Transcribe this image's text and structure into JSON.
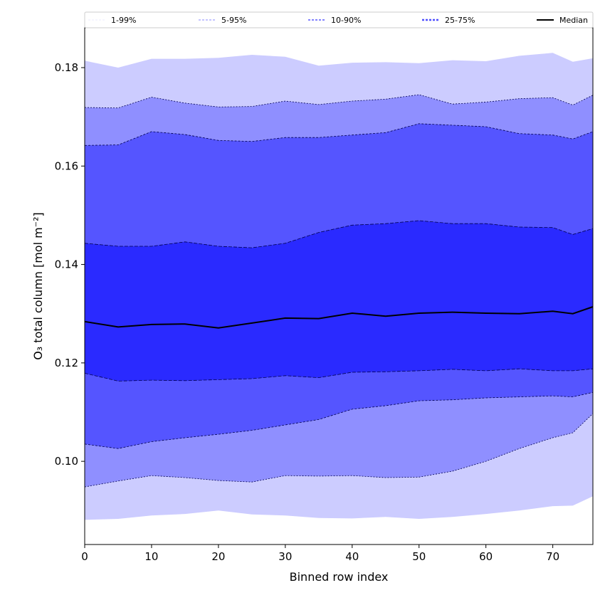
{
  "chart_data": {
    "type": "area",
    "title": "",
    "xlabel": "Binned row index",
    "ylabel": "O₃ total column [mol m⁻²]",
    "xlim": [
      0,
      76
    ],
    "ylim": [
      0.0831,
      0.1881
    ],
    "xticks": [
      "0",
      "10",
      "20",
      "30",
      "40",
      "50",
      "60",
      "70"
    ],
    "yticks": [
      "0.10",
      "0.12",
      "0.14",
      "0.16",
      "0.18"
    ],
    "legend_position": "top",
    "x": [
      0,
      5,
      10,
      15,
      20,
      25,
      30,
      35,
      40,
      45,
      50,
      55,
      60,
      65,
      70,
      73,
      76
    ],
    "bands": [
      {
        "name": "1-99%",
        "color": "#ccccff",
        "lower": [
          0.0881,
          0.0883,
          0.089,
          0.0893,
          0.09,
          0.0892,
          0.089,
          0.0885,
          0.0884,
          0.0887,
          0.0883,
          0.0887,
          0.0893,
          0.09,
          0.0909,
          0.091,
          0.0929
        ],
        "upper": [
          0.1814,
          0.18,
          0.1818,
          0.1818,
          0.182,
          0.1826,
          0.1822,
          0.1804,
          0.181,
          0.1811,
          0.1809,
          0.1815,
          0.1813,
          0.1824,
          0.183,
          0.1812,
          0.1819
        ]
      },
      {
        "name": "5-95%",
        "color": "#8f8fff",
        "lower": [
          0.0948,
          0.096,
          0.0971,
          0.0967,
          0.0961,
          0.0958,
          0.0971,
          0.097,
          0.0971,
          0.0967,
          0.0968,
          0.098,
          0.1,
          0.1026,
          0.1048,
          0.1058,
          0.1097
        ],
        "upper": [
          0.1719,
          0.1718,
          0.174,
          0.1728,
          0.172,
          0.1721,
          0.1732,
          0.1725,
          0.1732,
          0.1736,
          0.1745,
          0.1726,
          0.173,
          0.1737,
          0.1739,
          0.1724,
          0.1744
        ]
      },
      {
        "name": "10-90%",
        "color": "#5555ff",
        "lower": [
          0.1035,
          0.1026,
          0.104,
          0.1048,
          0.1055,
          0.1063,
          0.1074,
          0.1085,
          0.1106,
          0.1113,
          0.1123,
          0.1125,
          0.1129,
          0.1131,
          0.1133,
          0.1131,
          0.114
        ],
        "upper": [
          0.1642,
          0.1643,
          0.167,
          0.1664,
          0.1652,
          0.165,
          0.1658,
          0.1658,
          0.1663,
          0.1668,
          0.1686,
          0.1683,
          0.168,
          0.1666,
          0.1663,
          0.1655,
          0.167
        ]
      },
      {
        "name": "25-75%",
        "color": "#2a2aff",
        "lower": [
          0.1179,
          0.1163,
          0.1165,
          0.1164,
          0.1166,
          0.1168,
          0.1174,
          0.117,
          0.1181,
          0.1182,
          0.1184,
          0.1187,
          0.1184,
          0.1188,
          0.1184,
          0.1184,
          0.1188
        ],
        "upper": [
          0.1443,
          0.1437,
          0.1437,
          0.1446,
          0.1437,
          0.1434,
          0.1443,
          0.1465,
          0.148,
          0.1483,
          0.1489,
          0.1483,
          0.1483,
          0.1476,
          0.1475,
          0.1461,
          0.1473
        ]
      }
    ],
    "median": {
      "name": "Median",
      "color": "#000000",
      "values": [
        0.1284,
        0.1273,
        0.1278,
        0.1279,
        0.1271,
        0.1281,
        0.1291,
        0.129,
        0.1301,
        0.1295,
        0.1301,
        0.1303,
        0.1301,
        0.13,
        0.1305,
        0.13,
        0.1314
      ]
    },
    "legend": [
      {
        "label": "1-99%",
        "color": "#d8d8ff"
      },
      {
        "label": "5-95%",
        "color": "#a0a0ff"
      },
      {
        "label": "10-90%",
        "color": "#7070ff"
      },
      {
        "label": "25-75%",
        "color": "#5050ff"
      },
      {
        "label": "Median",
        "color": "#000000"
      }
    ]
  }
}
